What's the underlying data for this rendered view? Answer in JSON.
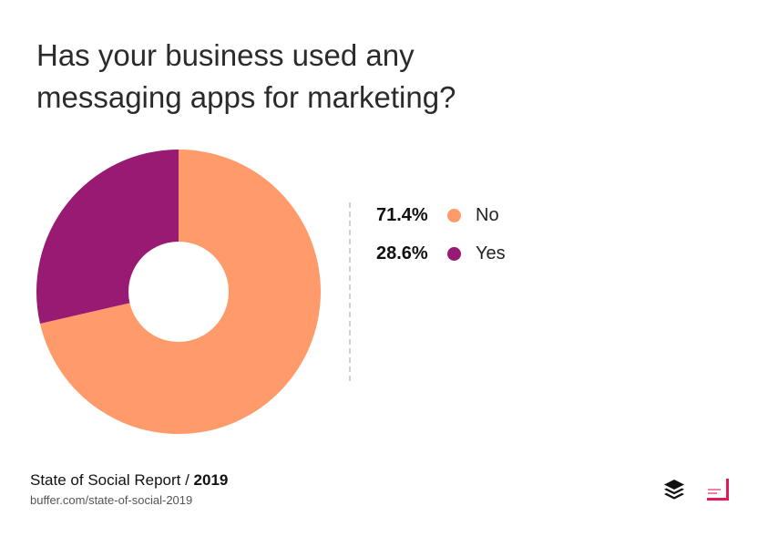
{
  "title_lines": [
    "Has your business used any",
    "messaging apps for marketing?"
  ],
  "chart_data": {
    "type": "pie",
    "style": "donut",
    "title": "Has your business used any messaging apps for marketing?",
    "slices": [
      {
        "label": "No",
        "value": 71.4,
        "display": "71.4%",
        "color": "#FF9B6A"
      },
      {
        "label": "Yes",
        "value": 28.6,
        "display": "28.6%",
        "color": "#981A72"
      }
    ],
    "legend_placement": "right",
    "start": "top",
    "direction": "clockwise"
  },
  "footer": {
    "report_label": "State of Social Report / ",
    "report_year": "2019",
    "url": "buffer.com/state-of-social-2019"
  },
  "logos": {
    "buffer": {
      "icon": "buffer-stack-icon",
      "color": "#111111"
    },
    "social_report": {
      "icon": "social-report-icon",
      "color": "#E8175D"
    }
  }
}
